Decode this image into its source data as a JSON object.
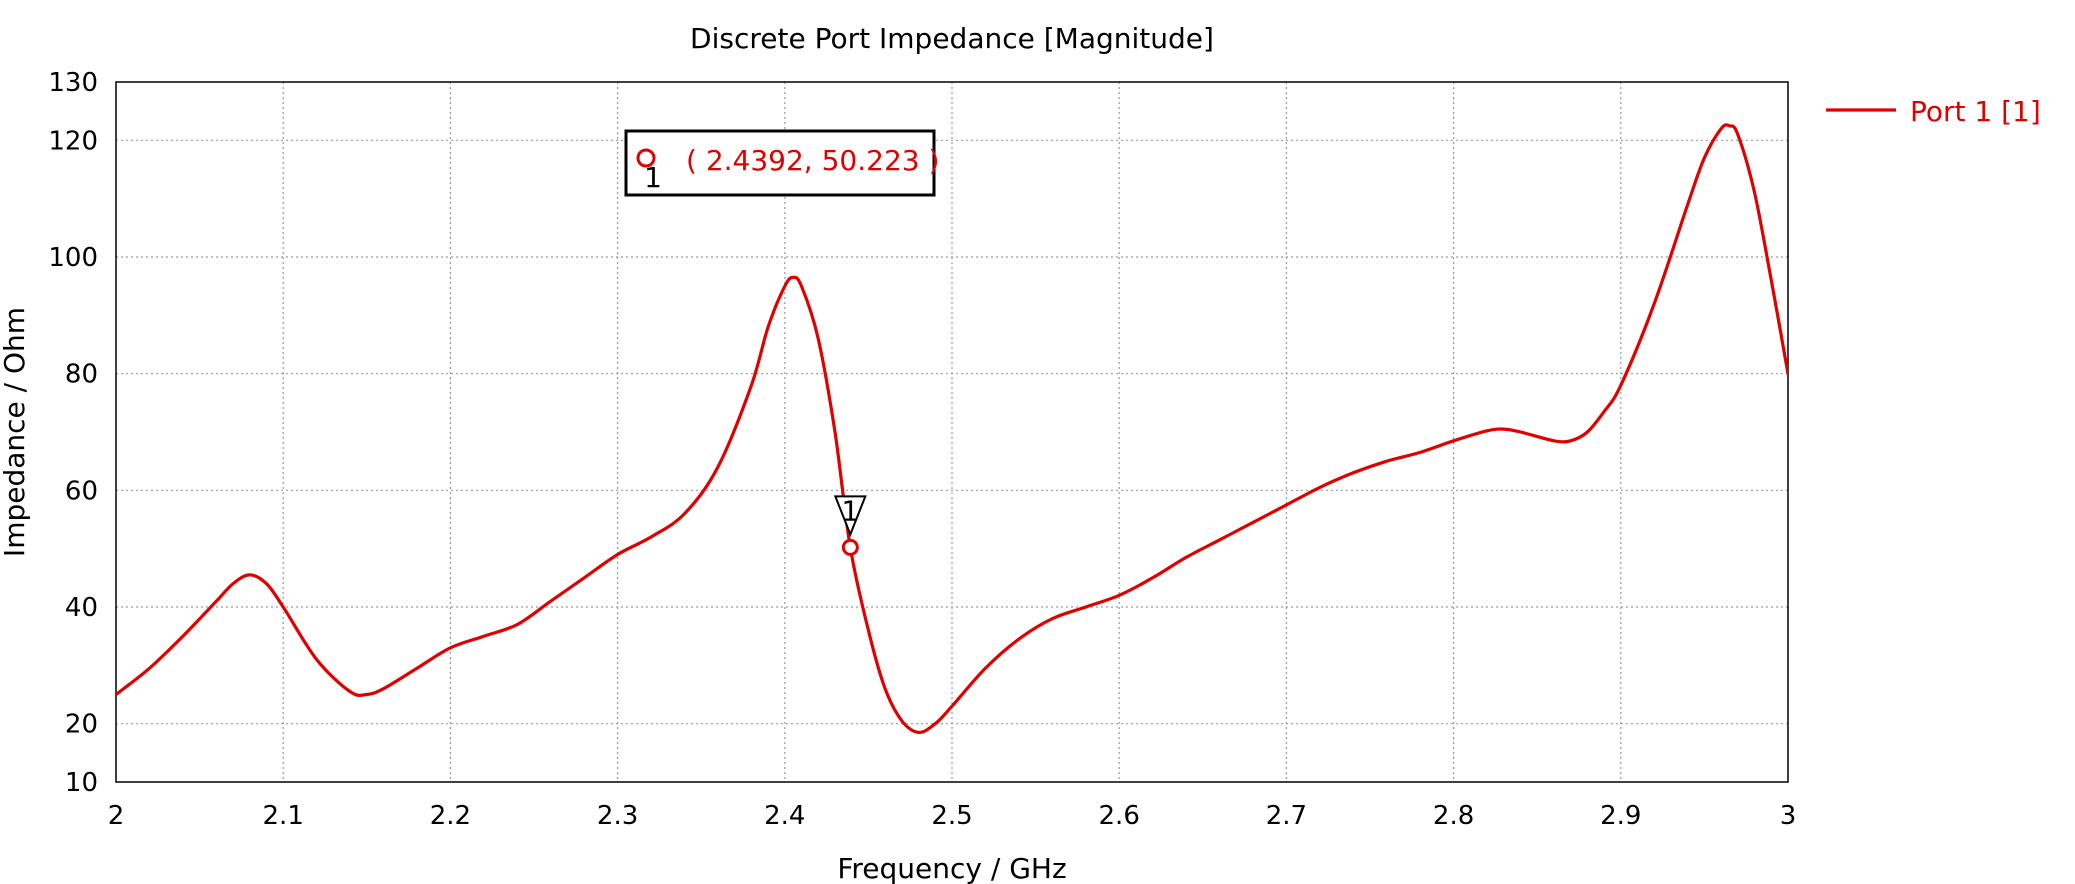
{
  "chart_data": {
    "type": "line",
    "title": "Discrete Port Impedance [Magnitude]",
    "xlabel": "Frequency / GHz",
    "ylabel": "Impedance / Ohm",
    "xlim": [
      2,
      3
    ],
    "ylim": [
      10,
      130
    ],
    "x_ticks": [
      "2",
      "2.1",
      "2.2",
      "2.3",
      "2.4",
      "2.5",
      "2.6",
      "2.7",
      "2.8",
      "2.9",
      "3"
    ],
    "y_ticks": [
      "10",
      "20",
      "40",
      "60",
      "80",
      "100",
      "120",
      "130"
    ],
    "grid": true,
    "legend_position": "right",
    "series": [
      {
        "name": "Port 1 [1]",
        "color": "#e00000",
        "x": [
          2.0,
          2.02,
          2.04,
          2.06,
          2.07,
          2.08,
          2.09,
          2.1,
          2.12,
          2.14,
          2.15,
          2.16,
          2.18,
          2.2,
          2.22,
          2.24,
          2.26,
          2.28,
          2.3,
          2.32,
          2.34,
          2.36,
          2.38,
          2.39,
          2.4,
          2.405,
          2.41,
          2.42,
          2.43,
          2.4392,
          2.45,
          2.46,
          2.47,
          2.48,
          2.49,
          2.5,
          2.52,
          2.54,
          2.56,
          2.58,
          2.6,
          2.62,
          2.64,
          2.66,
          2.68,
          2.7,
          2.72,
          2.74,
          2.76,
          2.78,
          2.8,
          2.82,
          2.83,
          2.84,
          2.86,
          2.87,
          2.88,
          2.89,
          2.9,
          2.92,
          2.94,
          2.95,
          2.96,
          2.965,
          2.97,
          2.98,
          2.99,
          3.0
        ],
        "y": [
          25,
          29.5,
          35,
          41,
          44,
          45.5,
          44,
          40,
          31,
          25.5,
          25,
          26,
          29.5,
          33,
          35,
          37,
          41,
          45,
          49,
          52,
          56,
          64,
          78,
          88,
          95,
          96.5,
          95,
          86,
          70,
          50.2,
          36,
          26,
          20.5,
          18.5,
          20,
          23,
          29.5,
          34.5,
          38,
          40,
          42,
          45,
          48.5,
          51.5,
          54.5,
          57.5,
          60.5,
          63,
          65,
          66.5,
          68.5,
          70.2,
          70.5,
          70,
          68.5,
          68.5,
          70,
          73.5,
          78,
          92,
          109,
          117,
          122,
          122.5,
          121,
          111,
          96,
          80
        ]
      }
    ],
    "marker": {
      "id": "1",
      "x": 2.4392,
      "y": 50.223,
      "readout": "( 2.4392, 50.223 )"
    }
  }
}
